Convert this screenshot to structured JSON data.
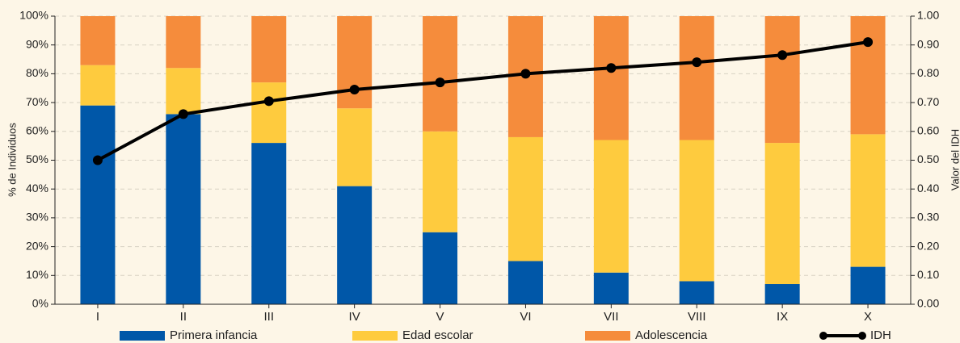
{
  "chart_data": {
    "type": "bar",
    "stacked": true,
    "ylabel": "% de Individuos",
    "y2label": "Valor del IDH",
    "categories": [
      "I",
      "II",
      "III",
      "IV",
      "V",
      "VI",
      "VII",
      "VIII",
      "IX",
      "X"
    ],
    "series": [
      {
        "name": "Primera infancia",
        "color": "#0057a8",
        "values": [
          69,
          66,
          56,
          41,
          25,
          15,
          11,
          8,
          7,
          13
        ]
      },
      {
        "name": "Edad escolar",
        "color": "#fecb3e",
        "values": [
          14,
          16,
          21,
          27,
          35,
          43,
          46,
          49,
          49,
          46
        ]
      },
      {
        "name": "Adolescencia",
        "color": "#f58c3c",
        "values": [
          17,
          18,
          23,
          32,
          40,
          42,
          43,
          43,
          44,
          41
        ]
      },
      {
        "name": "IDH",
        "color": "#000000",
        "type": "line",
        "axis": "y2",
        "values": [
          0.5,
          0.66,
          0.705,
          0.745,
          0.77,
          0.8,
          0.82,
          0.84,
          0.865,
          0.91
        ]
      }
    ],
    "ylim": [
      0,
      100
    ],
    "yticks": [
      {
        "value": 0,
        "label": "0%"
      },
      {
        "value": 10,
        "label": "10%"
      },
      {
        "value": 20,
        "label": "20%"
      },
      {
        "value": 30,
        "label": "30%"
      },
      {
        "value": 40,
        "label": "40%"
      },
      {
        "value": 50,
        "label": "50%"
      },
      {
        "value": 60,
        "label": "60%"
      },
      {
        "value": 70,
        "label": "70%"
      },
      {
        "value": 80,
        "label": "80%"
      },
      {
        "value": 90,
        "label": "90%"
      },
      {
        "value": 100,
        "label": "100%"
      }
    ],
    "y2lim": [
      0,
      1
    ],
    "y2ticks": [
      {
        "value": 0,
        "label": "0.00"
      },
      {
        "value": 0.1,
        "label": "0.10"
      },
      {
        "value": 0.2,
        "label": "0.20"
      },
      {
        "value": 0.3,
        "label": "0.30"
      },
      {
        "value": 0.4,
        "label": "0.40"
      },
      {
        "value": 0.5,
        "label": "0.50"
      },
      {
        "value": 0.6,
        "label": "0.60"
      },
      {
        "value": 0.7,
        "label": "0.70"
      },
      {
        "value": 0.8,
        "label": "0.80"
      },
      {
        "value": 0.9,
        "label": "0.90"
      },
      {
        "value": 1,
        "label": "1.00"
      }
    ],
    "grid": true,
    "legend": "bottom"
  }
}
